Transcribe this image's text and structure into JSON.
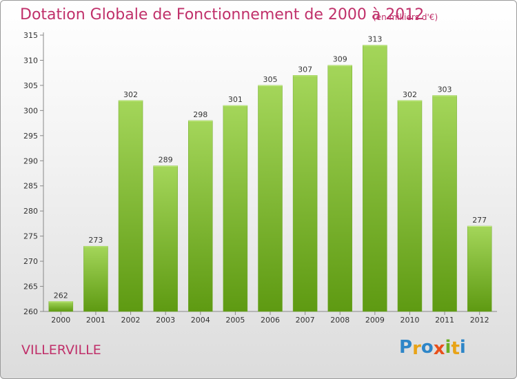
{
  "header": {
    "title": "Dotation Globale de Fonctionnement de 2000 à 2012",
    "unit": "(en milliers d'€)"
  },
  "footer": {
    "commune": "VILLERVILLE",
    "logo": [
      "P",
      "r",
      "o",
      "x",
      "i",
      "t",
      "i"
    ],
    "logo_colors": [
      "#2e86c8",
      "#e8a317",
      "#2e86c8",
      "#e8501b",
      "#6ab023",
      "#e8a317",
      "#2e86c8"
    ]
  },
  "chart_data": {
    "type": "bar",
    "title": "Dotation Globale de Fonctionnement de 2000 à 2012",
    "categories": [
      "2000",
      "2001",
      "2002",
      "2003",
      "2004",
      "2005",
      "2006",
      "2007",
      "2008",
      "2009",
      "2010",
      "2011",
      "2012"
    ],
    "values": [
      262,
      273,
      302,
      289,
      298,
      301,
      305,
      307,
      309,
      313,
      302,
      303,
      277
    ],
    "xlabel": "",
    "ylabel": "",
    "ylim": [
      260,
      315
    ],
    "yticks": [
      260,
      265,
      270,
      275,
      280,
      285,
      290,
      295,
      300,
      305,
      310,
      315
    ],
    "grid": false,
    "bar_color_top": "#a4d65a",
    "bar_color_bottom": "#5e9a12"
  }
}
